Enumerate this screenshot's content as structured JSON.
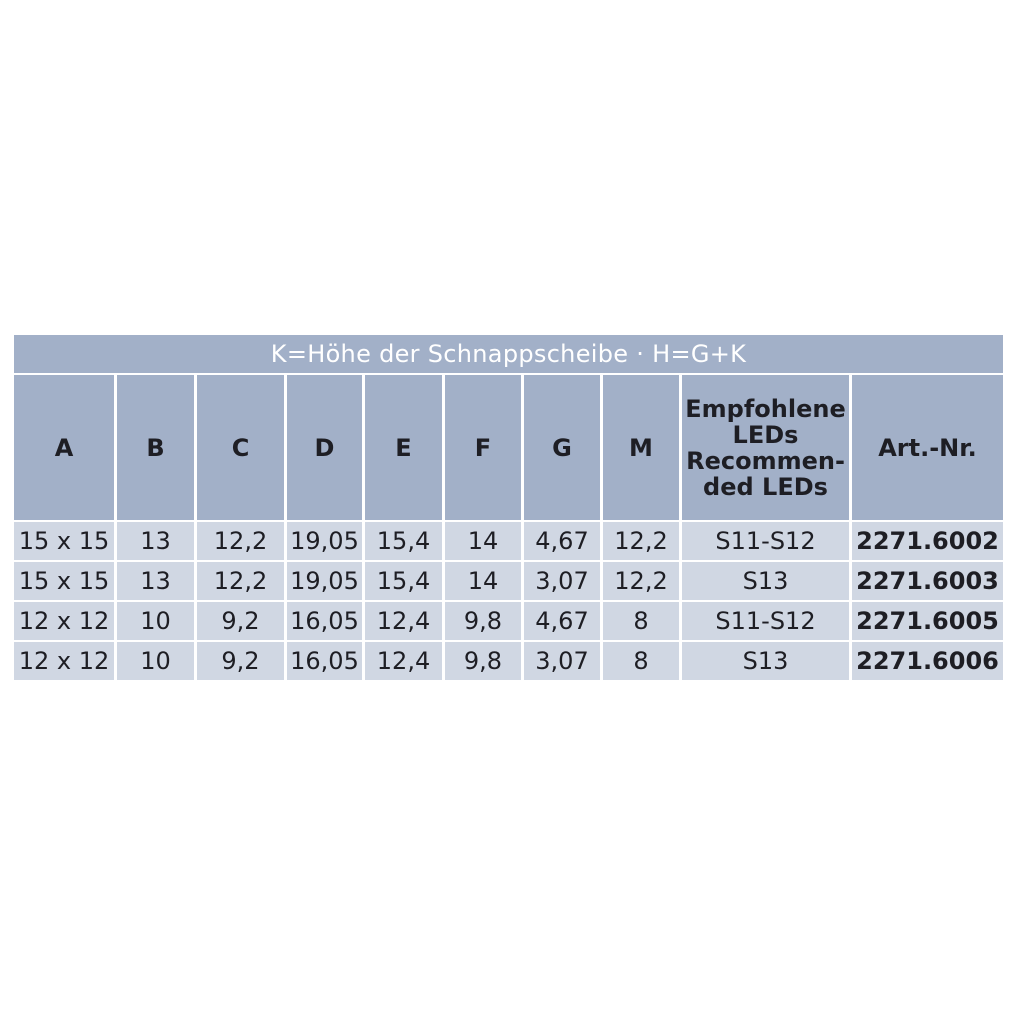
{
  "title": "K=Höhe der Schnappscheibe · H=G+K",
  "headers": [
    "A",
    "B",
    "C",
    "D",
    "E",
    "F",
    "G",
    "M",
    "Empfohlene LEDs Recommen-ded LEDs",
    "Art.-Nr."
  ],
  "led_header_lines": [
    "Empfohlene",
    "LEDs",
    "Recommen-",
    "ded LEDs"
  ],
  "rows": [
    [
      "15 x 15",
      "13",
      "12,2",
      "19,05",
      "15,4",
      "14",
      "4,67",
      "12,2",
      "S11-S12",
      "2271.6002"
    ],
    [
      "15 x 15",
      "13",
      "12,2",
      "19,05",
      "15,4",
      "14",
      "3,07",
      "12,2",
      "S13",
      "2271.6003"
    ],
    [
      "12 x 12",
      "10",
      "9,2",
      "16,05",
      "12,4",
      "9,8",
      "4,67",
      "8",
      "S11-S12",
      "2271.6005"
    ],
    [
      "12 x 12",
      "10",
      "9,2",
      "16,05",
      "12,4",
      "9,8",
      "3,07",
      "8",
      "S13",
      "2271.6006"
    ]
  ],
  "colors": {
    "header_bg": "#a2b0c8",
    "row_bg": "#d0d7e3"
  }
}
